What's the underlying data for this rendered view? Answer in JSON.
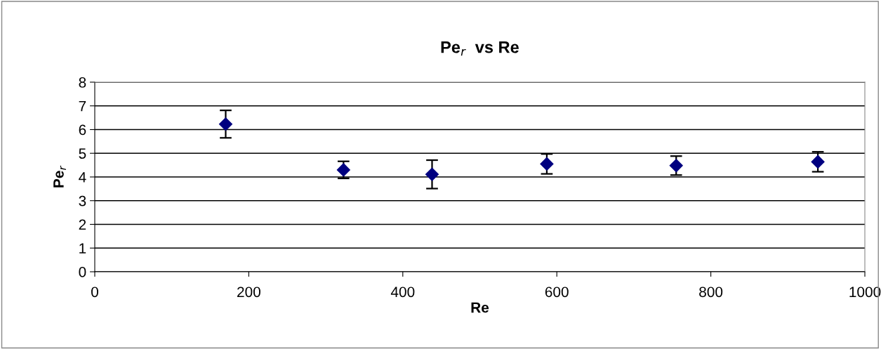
{
  "chart_data": {
    "type": "scatter",
    "title": "Pe$_{r}$  vs Re",
    "xlabel": "Re",
    "ylabel": "Pe$_{r}$",
    "x": [
      170,
      323,
      438,
      587,
      755,
      939
    ],
    "series": [
      {
        "color": "#000080",
        "values": [
          6.23,
          4.3,
          4.11,
          4.55,
          4.48,
          4.64
        ],
        "errors": [
          0.58,
          0.36,
          0.6,
          0.42,
          0.4,
          0.42
        ]
      }
    ],
    "xlim": [
      0,
      1000
    ],
    "xticks": [
      0,
      200,
      400,
      600,
      800,
      1000
    ],
    "ylim": [
      0,
      8
    ],
    "yticks": [
      0,
      1,
      2,
      3,
      4,
      5,
      6,
      7,
      8
    ],
    "grid": "y",
    "marker": "diamond",
    "legend": false
  }
}
